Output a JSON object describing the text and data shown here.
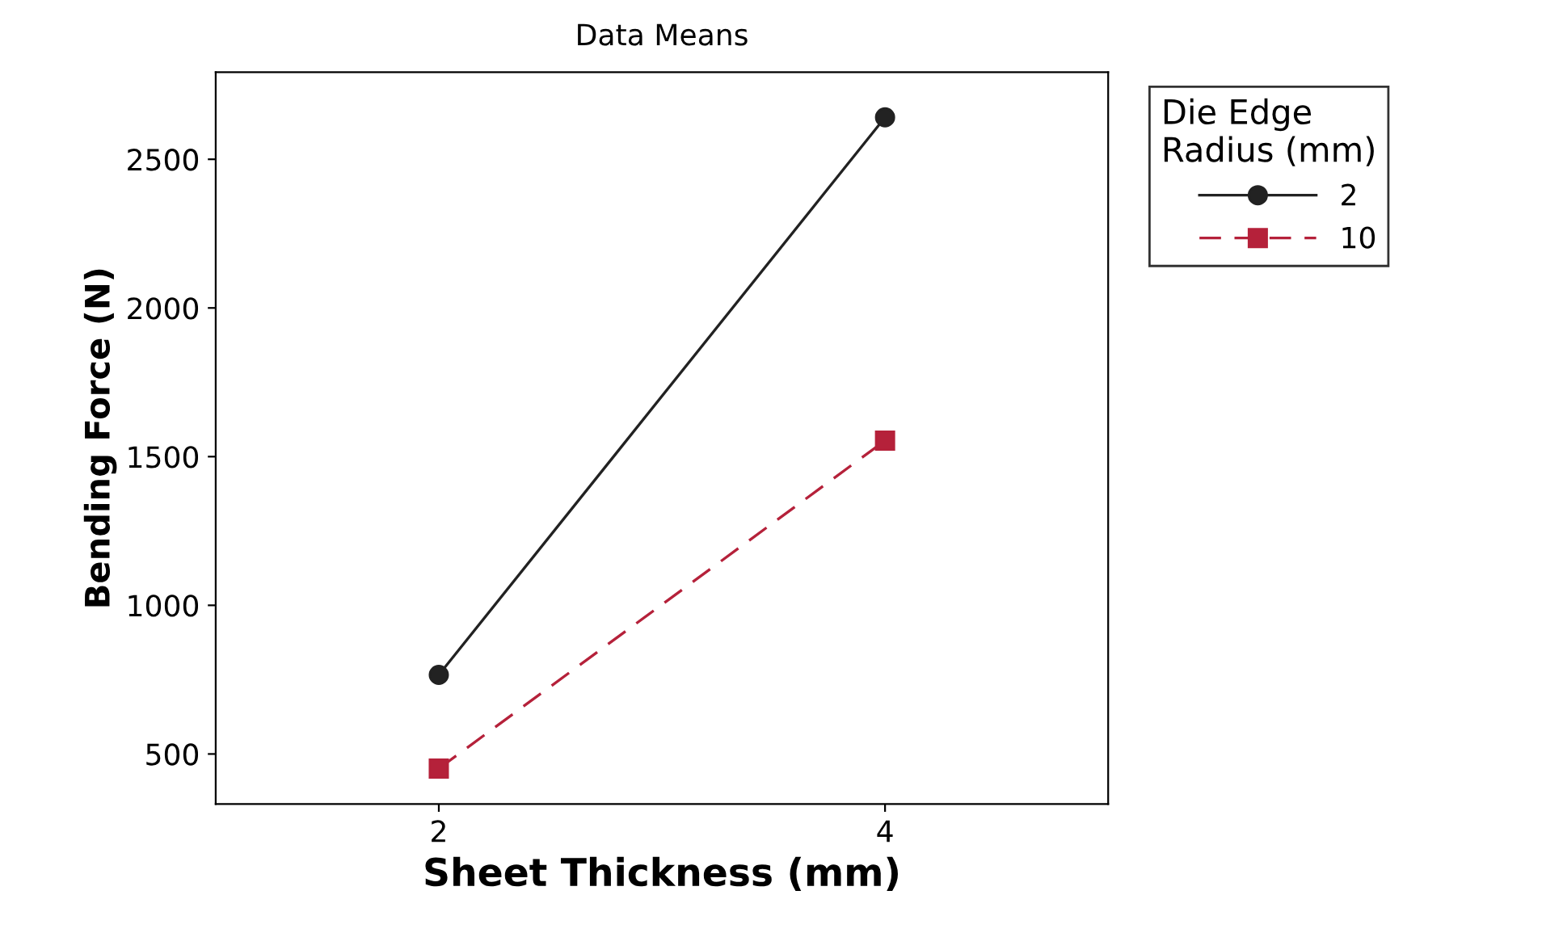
{
  "chart_data": {
    "type": "line",
    "title": "Data Means",
    "xlabel": "Sheet Thickness (mm)",
    "ylabel": "Bending Force (N)",
    "legend_title": "Die Edge\nRadius (mm)",
    "categories": [
      "2",
      "4"
    ],
    "ylim": [
      332,
      2793
    ],
    "yticks": [
      500,
      1000,
      1500,
      2000,
      2500
    ],
    "grid": false,
    "legend": "right",
    "series": [
      {
        "name": "2",
        "color": "#222222",
        "values": [
          766,
          2641
        ],
        "marker": "circle",
        "line_style": "solid"
      },
      {
        "name": "10",
        "color": "#b5213a",
        "values": [
          451,
          1554
        ],
        "marker": "square",
        "line_style": "dashed"
      }
    ]
  }
}
